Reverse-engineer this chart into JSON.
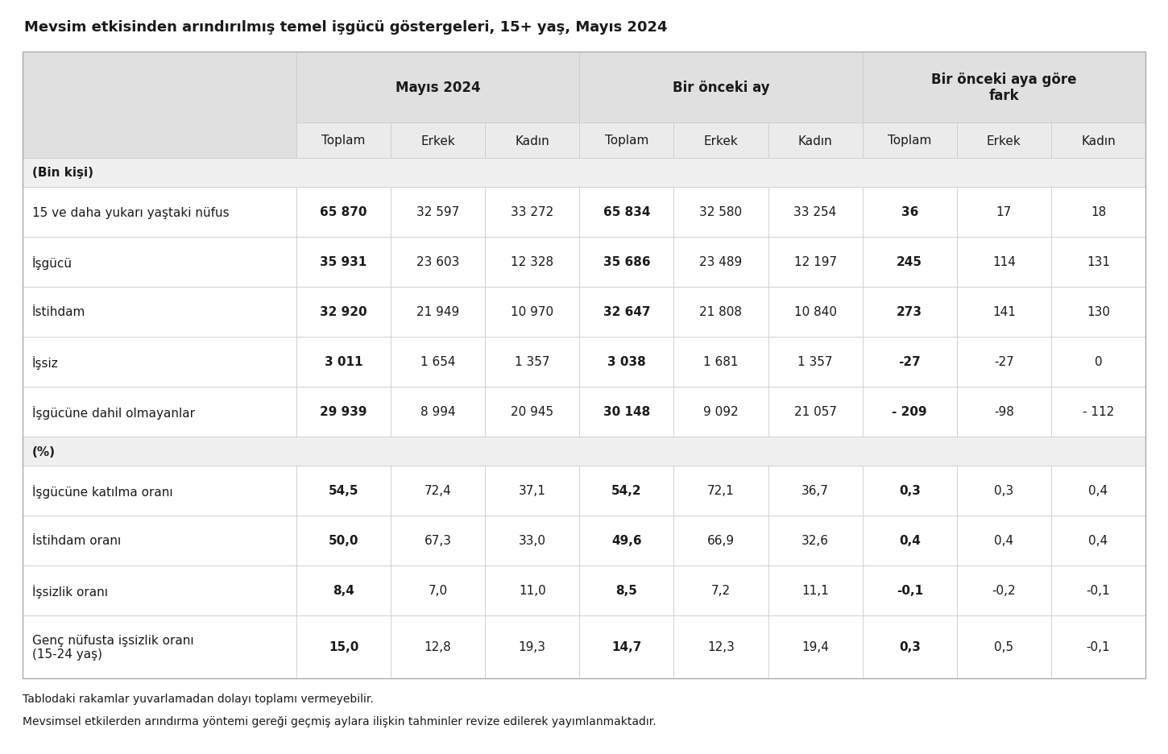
{
  "title": "Mevsim etkisinden arındırılmış temel işgücü göstergeleri, 15+ yaş, Mayıs 2024",
  "col_groups": [
    "Mayıs 2024",
    "Bir önceki ay",
    "Bir önceki aya göre\nfark"
  ],
  "sub_cols": [
    "Toplam",
    "Erkek",
    "Kadın",
    "Toplam",
    "Erkek",
    "Kadın",
    "Toplam",
    "Erkek",
    "Kadın"
  ],
  "section_bin": "(Bin kişi)",
  "section_pct": "(%)",
  "rows_bin": [
    {
      "label": "15 ve daha yukarı yaştaki nüfus",
      "values": [
        "65 870",
        "32 597",
        "33 272",
        "65 834",
        "32 580",
        "33 254",
        "36",
        "17",
        "18"
      ],
      "bold_cols": [
        0,
        3,
        6
      ]
    },
    {
      "label": "İşgücü",
      "values": [
        "35 931",
        "23 603",
        "12 328",
        "35 686",
        "23 489",
        "12 197",
        "245",
        "114",
        "131"
      ],
      "bold_cols": [
        0,
        3,
        6
      ]
    },
    {
      "label": "İstihdam",
      "values": [
        "32 920",
        "21 949",
        "10 970",
        "32 647",
        "21 808",
        "10 840",
        "273",
        "141",
        "130"
      ],
      "bold_cols": [
        0,
        3,
        6
      ]
    },
    {
      "label": "İşsiz",
      "values": [
        "3 011",
        "1 654",
        "1 357",
        "3 038",
        "1 681",
        "1 357",
        "-27",
        "-27",
        "0"
      ],
      "bold_cols": [
        0,
        3,
        6
      ]
    },
    {
      "label": "İşgücüne dahil olmayanlar",
      "values": [
        "29 939",
        "8 994",
        "20 945",
        "30 148",
        "9 092",
        "21 057",
        "- 209",
        "-98",
        "- 112"
      ],
      "bold_cols": [
        0,
        3,
        6
      ]
    }
  ],
  "rows_pct": [
    {
      "label": "İşgücüne katılma oranı",
      "values": [
        "54,5",
        "72,4",
        "37,1",
        "54,2",
        "72,1",
        "36,7",
        "0,3",
        "0,3",
        "0,4"
      ],
      "bold_cols": [
        0,
        3,
        6
      ]
    },
    {
      "label": "İstihdam oranı",
      "values": [
        "50,0",
        "67,3",
        "33,0",
        "49,6",
        "66,9",
        "32,6",
        "0,4",
        "0,4",
        "0,4"
      ],
      "bold_cols": [
        0,
        3,
        6
      ]
    },
    {
      "label": "İşsizlik oranı",
      "values": [
        "8,4",
        "7,0",
        "11,0",
        "8,5",
        "7,2",
        "11,1",
        "-0,1",
        "-0,2",
        "-0,1"
      ],
      "bold_cols": [
        0,
        3,
        6
      ]
    },
    {
      "label": "Genç nüfusta işsizlik oranı\n(15-24 yaş)",
      "values": [
        "15,0",
        "12,8",
        "19,3",
        "14,7",
        "12,3",
        "19,4",
        "0,3",
        "0,5",
        "-0,1"
      ],
      "bold_cols": [
        0,
        3,
        6
      ]
    }
  ],
  "footnotes": [
    "Tablodaki rakamlar yuvarlamadan dolayı toplamı vermeyebilir.",
    "Mevsimsel etkilerden arındırma yöntemi gereği geçmiş aylara ilişkin tahminler revize edilerek yayımlanmaktadır."
  ],
  "bg_header": "#e0e0e0",
  "bg_subheader": "#ebebeb",
  "bg_white": "#ffffff",
  "bg_section": "#f0f0f0",
  "text_color": "#1a1a1a",
  "border_color": "#c8c8c8",
  "title_fontsize": 13,
  "header_fontsize": 12,
  "cell_fontsize": 11,
  "footnote_fontsize": 10
}
